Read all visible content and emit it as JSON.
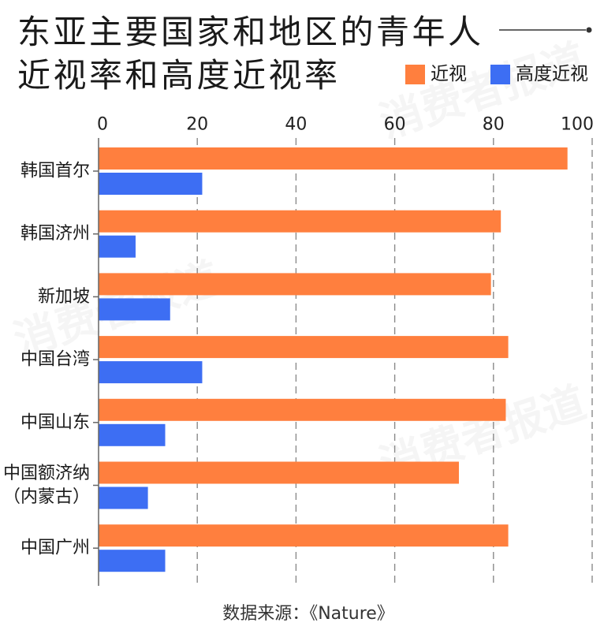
{
  "watermark": "消费者报道",
  "chart_data": {
    "type": "bar",
    "orientation": "horizontal",
    "title": [
      "东亚主要国家和地区的青年人",
      "近视率和高度近视率"
    ],
    "categories": [
      "韩国首尔",
      "韩国济州",
      "新加坡",
      "中国台湾",
      "中国山东",
      "中国额济纳（内蒙古）",
      "中国广州"
    ],
    "series": [
      {
        "name": "近视",
        "color": "#FF7F3E",
        "values": [
          95,
          81.5,
          79.5,
          83,
          82.5,
          73,
          83
        ]
      },
      {
        "name": "高度近视",
        "color": "#3D6EF3",
        "values": [
          21,
          7.5,
          14.5,
          21,
          13.5,
          10,
          13.5
        ]
      }
    ],
    "xlim": [
      0,
      100
    ],
    "xticks": [
      0,
      20,
      40,
      60,
      80,
      100
    ],
    "x_axis_position": "top",
    "grid": true,
    "legend_position": "top-right",
    "source": "数据来源：《Nature》"
  }
}
